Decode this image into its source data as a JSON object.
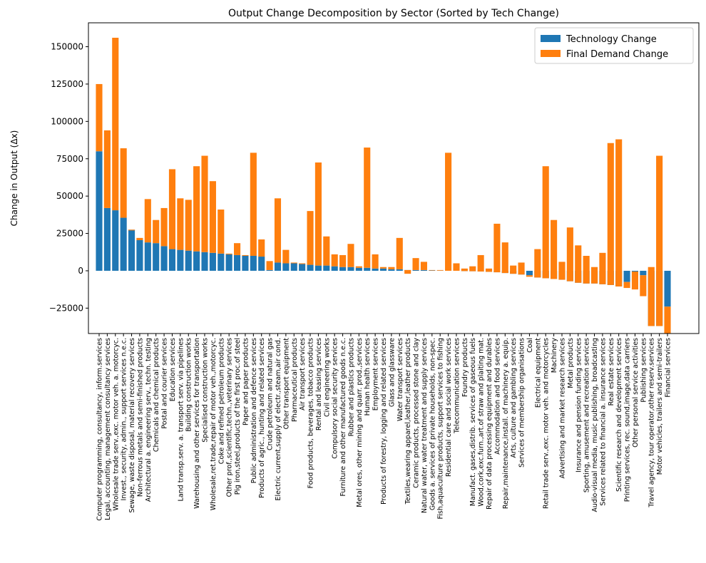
{
  "chart_data": {
    "type": "stacked_bar",
    "title": "Output Change Decomposition by Sector (Sorted by Tech Change)",
    "y_label": "Change in Output (Δx)",
    "categories": [
      "Computer programming, consultancy, inform.services",
      "Legal, accounting, management consultancy services",
      "Wholesale trade serv.,exc. motor veh. a. motorcyc.",
      "Invest., security, admin., support services n.e.c.",
      "Sewage, waste disposal, material recovery services",
      "Non-ferrous metals and semi-finished products",
      "Architectural a. engineering serv., techn. testing",
      "Chemicals and chemical products",
      "Postal and courier services",
      "Education services",
      "Land transp.serv. a. transport serv. via pipelines",
      "Building construction works",
      "Warehousing and other services for transportation",
      "Specialised construction works",
      "Wholesale,ret.trade,repair of motor veh.,motorcyc.",
      "Coke and refined petroleum products",
      "Other prof.,scientific,techn.,veterinary services",
      "Pig iron,steel,products of the first proc.of steel",
      "Paper and paper products",
      "Public administration and defence services",
      "Products of agric., hunting and related services",
      "Crude petroleum and natural gas",
      "Electric current,supply of electr.,steam,air cond.",
      "Other transport equipment",
      "Pharmaceutical products",
      "Air transport services",
      "Food products, beverages, tobacco products",
      "Rental and leasing services",
      "Civil engineering works",
      "Compulsory social security services",
      "Furniture and other manufactured goods n.e.c.",
      "Rubber and plastics products",
      "Metal ores, other mining and quarr. prod.,services",
      "Human health services",
      "Employment services",
      "Products of forestry, logging and related services",
      "Glass and glassware",
      "Water transport services",
      "Textiles,wearing apparel,leather,leather products",
      "Ceramic products, processed stone and clay",
      "Natural water, water treatment and supply services",
      "Goods a. services of private households, non-spec.",
      "Fish,aquaculture products, support services to fishing",
      "Residential care and social work services",
      "Telecommunication services",
      "Foundry products",
      "Manufact. gases,distrib. services of gaseous fuels",
      "Wood,cork,exc.furn.,art.of straw and plaiting mat.",
      "Repair of data processing equipment and durables",
      "Accommodation and food services",
      "Repair,maintenance,install. of machinery a. equip.",
      "Arts, culture and gambling services",
      "Services of membership organisations",
      "Coal",
      "Electrical equipment",
      "Retail trade serv.,exc. motor veh. and motorcycles",
      "Machinery",
      "Advertising and market research services",
      "Metal products",
      "Insurance and pension funding services",
      "Sporting, amusement and recreation services",
      "Audio-visual media, music publishing, broadcasting",
      "Services related to financial a. insurance services",
      "Real estate services",
      "Scientific research and development services",
      "Printing services, rec. sound,image,data carriers",
      "Other personal service activities",
      "Publishing services",
      "Travel agency, tour operator,other reserv.services",
      "Motor vehicles, trailers and semi-trailers",
      "Financial services"
    ],
    "series": [
      {
        "name": "Technology Change",
        "color": "#1f77b4",
        "values": [
          80000,
          42000,
          40500,
          35500,
          27500,
          20500,
          19000,
          18500,
          16500,
          14500,
          14000,
          13500,
          13000,
          12500,
          12000,
          11500,
          11000,
          10500,
          10000,
          10000,
          9500,
          500,
          5500,
          5000,
          5000,
          4500,
          4000,
          3500,
          3500,
          3000,
          2500,
          2500,
          2000,
          2000,
          1500,
          1500,
          1000,
          1000,
          500,
          500,
          500,
          200,
          100,
          0,
          0,
          -200,
          -300,
          -500,
          -700,
          -1000,
          -1500,
          -2000,
          -2500,
          -3000,
          -4500,
          -5000,
          -5500,
          -6000,
          -7000,
          -8000,
          -8500,
          -8500,
          -9000,
          -9500,
          -10500,
          -7500,
          -500,
          -3000,
          -37000,
          -37000,
          -24000
        ]
      },
      {
        "name": "Final Demand Change",
        "color": "#ff7f0e",
        "values": [
          45000,
          52000,
          115500,
          46500,
          -500,
          1500,
          29000,
          15500,
          25500,
          53500,
          34500,
          34000,
          57000,
          64500,
          48000,
          29500,
          500,
          8000,
          500,
          69000,
          11500,
          6000,
          43000,
          9000,
          500,
          500,
          36000,
          69000,
          19500,
          8000,
          8000,
          15500,
          1000,
          80500,
          9500,
          1000,
          1500,
          21000,
          -2500,
          8000,
          5500,
          300,
          400,
          79000,
          5000,
          1700,
          3300,
          11000,
          2200,
          32500,
          20500,
          5500,
          8000,
          -1000,
          19000,
          75000,
          39500,
          12000,
          36000,
          25000,
          18500,
          11000,
          21000,
          95000,
          98500,
          -4000,
          -12000,
          -14000,
          39500,
          114000,
          -25000
        ]
      }
    ],
    "ylim": [
      -42000,
      166000
    ],
    "yticks": [
      {
        "value": -25000,
        "label": "−25000"
      },
      0,
      25000,
      50000,
      75000,
      100000,
      125000,
      150000
    ],
    "legend": "upper right"
  }
}
